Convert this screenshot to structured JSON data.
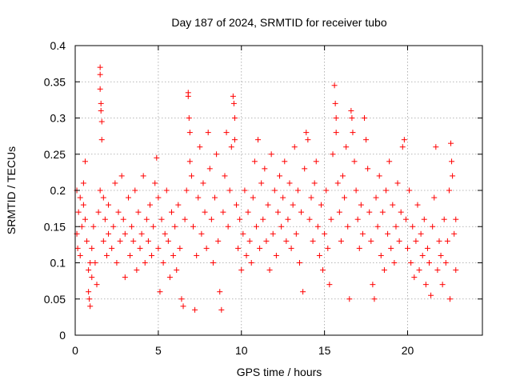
{
  "chart_data": {
    "type": "scatter",
    "title": "Day 187 of 2024, SRMTID for receiver tubo",
    "xlabel": "GPS time / hours",
    "ylabel": "SRMTID / TECUs",
    "xlim": [
      0,
      24.5
    ],
    "ylim": [
      0,
      0.4
    ],
    "x_ticks": [
      0,
      5,
      10,
      15,
      20
    ],
    "x_tick_labels": [
      "0",
      "5",
      "10",
      "15",
      "20"
    ],
    "y_ticks": [
      0,
      0.05,
      0.1,
      0.15,
      0.2,
      0.25,
      0.3,
      0.35,
      0.4
    ],
    "y_tick_labels": [
      "0",
      "0.05",
      "0.1",
      "0.15",
      "0.2",
      "0.25",
      "0.3",
      "0.35",
      "0.4"
    ],
    "grid": true,
    "marker": "plus",
    "series": [
      {
        "name": "SRMTID",
        "color": "#ff0000",
        "points": [
          [
            0.1,
            0.14
          ],
          [
            0.1,
            0.2
          ],
          [
            0.15,
            0.12
          ],
          [
            0.2,
            0.17
          ],
          [
            0.3,
            0.19
          ],
          [
            0.3,
            0.11
          ],
          [
            0.4,
            0.15
          ],
          [
            0.5,
            0.21
          ],
          [
            0.5,
            0.18
          ],
          [
            0.6,
            0.16
          ],
          [
            0.6,
            0.24
          ],
          [
            0.7,
            0.13
          ],
          [
            0.8,
            0.09
          ],
          [
            0.8,
            0.06
          ],
          [
            0.85,
            0.05
          ],
          [
            0.9,
            0.04
          ],
          [
            0.9,
            0.1
          ],
          [
            1.0,
            0.12
          ],
          [
            1.0,
            0.08
          ],
          [
            1.1,
            0.15
          ],
          [
            1.2,
            0.1
          ],
          [
            1.3,
            0.07
          ],
          [
            1.4,
            0.17
          ],
          [
            1.5,
            0.2
          ],
          [
            1.5,
            0.37
          ],
          [
            1.5,
            0.36
          ],
          [
            1.5,
            0.34
          ],
          [
            1.55,
            0.32
          ],
          [
            1.55,
            0.31
          ],
          [
            1.6,
            0.295
          ],
          [
            1.6,
            0.27
          ],
          [
            1.7,
            0.19
          ],
          [
            1.7,
            0.13
          ],
          [
            1.8,
            0.16
          ],
          [
            1.9,
            0.11
          ],
          [
            2.0,
            0.14
          ],
          [
            2.0,
            0.18
          ],
          [
            2.2,
            0.12
          ],
          [
            2.3,
            0.15
          ],
          [
            2.4,
            0.21
          ],
          [
            2.5,
            0.1
          ],
          [
            2.6,
            0.17
          ],
          [
            2.7,
            0.13
          ],
          [
            2.8,
            0.22
          ],
          [
            2.9,
            0.16
          ],
          [
            3.0,
            0.08
          ],
          [
            3.0,
            0.14
          ],
          [
            3.2,
            0.19
          ],
          [
            3.3,
            0.11
          ],
          [
            3.4,
            0.15
          ],
          [
            3.5,
            0.13
          ],
          [
            3.6,
            0.2
          ],
          [
            3.7,
            0.09
          ],
          [
            3.8,
            0.17
          ],
          [
            3.9,
            0.12
          ],
          [
            4.0,
            0.14
          ],
          [
            4.1,
            0.22
          ],
          [
            4.2,
            0.1
          ],
          [
            4.3,
            0.16
          ],
          [
            4.4,
            0.13
          ],
          [
            4.5,
            0.18
          ],
          [
            4.6,
            0.11
          ],
          [
            4.7,
            0.15
          ],
          [
            4.8,
            0.21
          ],
          [
            4.9,
            0.245
          ],
          [
            5.0,
            0.12
          ],
          [
            5.0,
            0.19
          ],
          [
            5.1,
            0.06
          ],
          [
            5.2,
            0.16
          ],
          [
            5.3,
            0.1
          ],
          [
            5.4,
            0.14
          ],
          [
            5.5,
            0.2
          ],
          [
            5.6,
            0.13
          ],
          [
            5.7,
            0.08
          ],
          [
            5.8,
            0.17
          ],
          [
            5.9,
            0.11
          ],
          [
            6.0,
            0.15
          ],
          [
            6.1,
            0.09
          ],
          [
            6.2,
            0.18
          ],
          [
            6.3,
            0.12
          ],
          [
            6.4,
            0.05
          ],
          [
            6.5,
            0.04
          ],
          [
            6.6,
            0.16
          ],
          [
            6.7,
            0.2
          ],
          [
            6.8,
            0.335
          ],
          [
            6.8,
            0.33
          ],
          [
            6.85,
            0.3
          ],
          [
            6.9,
            0.28
          ],
          [
            6.9,
            0.24
          ],
          [
            7.0,
            0.22
          ],
          [
            7.1,
            0.15
          ],
          [
            7.2,
            0.035
          ],
          [
            7.3,
            0.11
          ],
          [
            7.4,
            0.19
          ],
          [
            7.5,
            0.26
          ],
          [
            7.6,
            0.14
          ],
          [
            7.7,
            0.21
          ],
          [
            7.8,
            0.17
          ],
          [
            7.9,
            0.12
          ],
          [
            8.0,
            0.28
          ],
          [
            8.1,
            0.23
          ],
          [
            8.2,
            0.16
          ],
          [
            8.3,
            0.1
          ],
          [
            8.4,
            0.19
          ],
          [
            8.5,
            0.25
          ],
          [
            8.6,
            0.13
          ],
          [
            8.7,
            0.06
          ],
          [
            8.8,
            0.035
          ],
          [
            8.9,
            0.17
          ],
          [
            9.0,
            0.22
          ],
          [
            9.1,
            0.28
          ],
          [
            9.2,
            0.15
          ],
          [
            9.3,
            0.2
          ],
          [
            9.4,
            0.26
          ],
          [
            9.5,
            0.33
          ],
          [
            9.55,
            0.32
          ],
          [
            9.6,
            0.3
          ],
          [
            9.6,
            0.27
          ],
          [
            9.7,
            0.18
          ],
          [
            9.8,
            0.12
          ],
          [
            9.9,
            0.16
          ],
          [
            10.0,
            0.09
          ],
          [
            10.1,
            0.14
          ],
          [
            10.2,
            0.2
          ],
          [
            10.3,
            0.11
          ],
          [
            10.4,
            0.17
          ],
          [
            10.5,
            0.13
          ],
          [
            10.6,
            0.1
          ],
          [
            10.7,
            0.19
          ],
          [
            10.8,
            0.24
          ],
          [
            10.9,
            0.15
          ],
          [
            11.0,
            0.27
          ],
          [
            11.1,
            0.12
          ],
          [
            11.2,
            0.21
          ],
          [
            11.3,
            0.16
          ],
          [
            11.4,
            0.23
          ],
          [
            11.5,
            0.13
          ],
          [
            11.6,
            0.18
          ],
          [
            11.7,
            0.09
          ],
          [
            11.8,
            0.25
          ],
          [
            11.9,
            0.14
          ],
          [
            12.0,
            0.2
          ],
          [
            12.1,
            0.11
          ],
          [
            12.2,
            0.17
          ],
          [
            12.3,
            0.22
          ],
          [
            12.4,
            0.15
          ],
          [
            12.5,
            0.19
          ],
          [
            12.6,
            0.24
          ],
          [
            12.7,
            0.13
          ],
          [
            12.8,
            0.16
          ],
          [
            12.9,
            0.21
          ],
          [
            13.0,
            0.12
          ],
          [
            13.1,
            0.18
          ],
          [
            13.2,
            0.26
          ],
          [
            13.3,
            0.14
          ],
          [
            13.4,
            0.2
          ],
          [
            13.5,
            0.1
          ],
          [
            13.6,
            0.17
          ],
          [
            13.7,
            0.06
          ],
          [
            13.8,
            0.23
          ],
          [
            13.9,
            0.28
          ],
          [
            14.0,
            0.27
          ],
          [
            14.1,
            0.16
          ],
          [
            14.2,
            0.19
          ],
          [
            14.3,
            0.13
          ],
          [
            14.4,
            0.21
          ],
          [
            14.5,
            0.24
          ],
          [
            14.6,
            0.15
          ],
          [
            14.7,
            0.11
          ],
          [
            14.8,
            0.18
          ],
          [
            14.9,
            0.09
          ],
          [
            15.0,
            0.14
          ],
          [
            15.1,
            0.2
          ],
          [
            15.2,
            0.12
          ],
          [
            15.3,
            0.07
          ],
          [
            15.4,
            0.16
          ],
          [
            15.5,
            0.25
          ],
          [
            15.6,
            0.345
          ],
          [
            15.65,
            0.32
          ],
          [
            15.7,
            0.3
          ],
          [
            15.7,
            0.28
          ],
          [
            15.8,
            0.21
          ],
          [
            15.9,
            0.17
          ],
          [
            16.0,
            0.13
          ],
          [
            16.1,
            0.22
          ],
          [
            16.2,
            0.19
          ],
          [
            16.3,
            0.26
          ],
          [
            16.4,
            0.15
          ],
          [
            16.5,
            0.05
          ],
          [
            16.6,
            0.31
          ],
          [
            16.65,
            0.3
          ],
          [
            16.7,
            0.28
          ],
          [
            16.8,
            0.24
          ],
          [
            16.9,
            0.2
          ],
          [
            17.0,
            0.16
          ],
          [
            17.1,
            0.12
          ],
          [
            17.2,
            0.18
          ],
          [
            17.3,
            0.14
          ],
          [
            17.4,
            0.3
          ],
          [
            17.5,
            0.27
          ],
          [
            17.6,
            0.23
          ],
          [
            17.7,
            0.17
          ],
          [
            17.8,
            0.13
          ],
          [
            17.9,
            0.07
          ],
          [
            18.0,
            0.05
          ],
          [
            18.1,
            0.19
          ],
          [
            18.2,
            0.15
          ],
          [
            18.3,
            0.22
          ],
          [
            18.4,
            0.11
          ],
          [
            18.5,
            0.17
          ],
          [
            18.6,
            0.09
          ],
          [
            18.7,
            0.2
          ],
          [
            18.8,
            0.14
          ],
          [
            18.9,
            0.24
          ],
          [
            19.0,
            0.12
          ],
          [
            19.1,
            0.18
          ],
          [
            19.2,
            0.1
          ],
          [
            19.3,
            0.15
          ],
          [
            19.4,
            0.21
          ],
          [
            19.5,
            0.13
          ],
          [
            19.6,
            0.17
          ],
          [
            19.7,
            0.26
          ],
          [
            19.8,
            0.27
          ],
          [
            19.9,
            0.16
          ],
          [
            20.0,
            0.12
          ],
          [
            20.1,
            0.2
          ],
          [
            20.2,
            0.1
          ],
          [
            20.3,
            0.15
          ],
          [
            20.4,
            0.08
          ],
          [
            20.5,
            0.13
          ],
          [
            20.6,
            0.18
          ],
          [
            20.7,
            0.09
          ],
          [
            20.8,
            0.14
          ],
          [
            20.9,
            0.11
          ],
          [
            21.0,
            0.16
          ],
          [
            21.1,
            0.07
          ],
          [
            21.2,
            0.12
          ],
          [
            21.3,
            0.1
          ],
          [
            21.4,
            0.055
          ],
          [
            21.5,
            0.15
          ],
          [
            21.6,
            0.19
          ],
          [
            21.7,
            0.26
          ],
          [
            21.8,
            0.09
          ],
          [
            21.9,
            0.13
          ],
          [
            22.0,
            0.11
          ],
          [
            22.1,
            0.07
          ],
          [
            22.2,
            0.16
          ],
          [
            22.3,
            0.1
          ],
          [
            22.4,
            0.13
          ],
          [
            22.5,
            0.2
          ],
          [
            22.55,
            0.05
          ],
          [
            22.6,
            0.265
          ],
          [
            22.65,
            0.24
          ],
          [
            22.7,
            0.22
          ],
          [
            22.8,
            0.14
          ],
          [
            22.9,
            0.09
          ],
          [
            22.9,
            0.16
          ]
        ]
      }
    ]
  }
}
